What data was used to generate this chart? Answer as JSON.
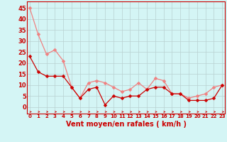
{
  "x": [
    0,
    1,
    2,
    3,
    4,
    5,
    6,
    7,
    8,
    9,
    10,
    11,
    12,
    13,
    14,
    15,
    16,
    17,
    18,
    19,
    20,
    21,
    22,
    23
  ],
  "rafales": [
    45,
    33,
    24,
    26,
    21,
    9,
    4,
    11,
    12,
    11,
    9,
    7,
    8,
    11,
    8,
    13,
    12,
    6,
    6,
    4,
    5,
    6,
    9,
    10
  ],
  "moyen": [
    23,
    16,
    14,
    14,
    14,
    9,
    4,
    8,
    9,
    1,
    5,
    4,
    5,
    5,
    8,
    9,
    9,
    6,
    6,
    3,
    3,
    3,
    4,
    10
  ],
  "color_rafales": "#f08080",
  "color_moyen": "#cc0000",
  "bg_color": "#d4f5f5",
  "grid_color": "#b8d0d0",
  "xlabel": "Vent moyen/en rafales ( km/h )",
  "xlabel_color": "#cc0000",
  "yticks": [
    0,
    5,
    10,
    15,
    20,
    25,
    30,
    35,
    40,
    45
  ],
  "ylim": [
    -3,
    48
  ],
  "xlim": [
    -0.3,
    23.3
  ],
  "marker": "D",
  "markersize": 2.5,
  "linewidth": 0.9,
  "ytick_fontsize": 6,
  "xtick_fontsize": 5,
  "xlabel_fontsize": 7
}
